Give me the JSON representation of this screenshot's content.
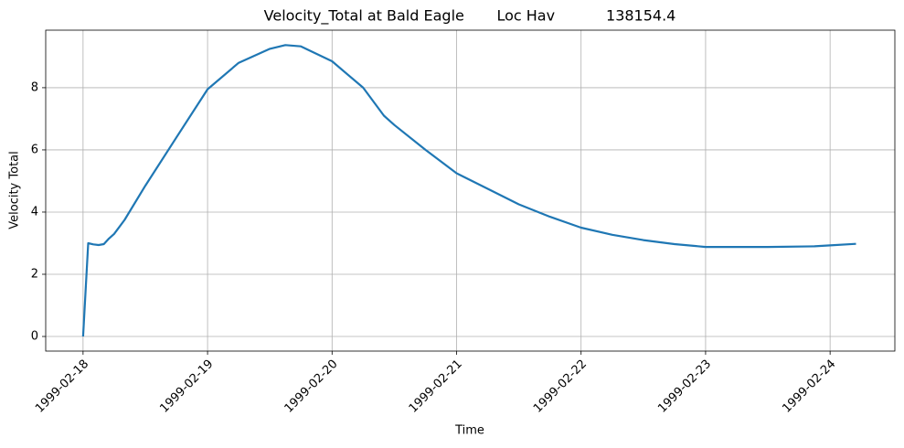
{
  "chart_data": {
    "type": "line",
    "title": "Velocity_Total at Bald Eagle       Loc Hav           138154.4",
    "x_label": "Time",
    "y_label": "Velocity Total",
    "x": [
      "1999-02-18T00:00",
      "1999-02-18T01:00",
      "1999-02-18T02:00",
      "1999-02-18T03:00",
      "1999-02-18T04:00",
      "1999-02-18T05:00",
      "1999-02-18T06:00",
      "1999-02-18T08:00",
      "1999-02-18T12:00",
      "1999-02-18T18:00",
      "1999-02-19T00:00",
      "1999-02-19T06:00",
      "1999-02-19T12:00",
      "1999-02-19T15:00",
      "1999-02-19T18:00",
      "1999-02-20T00:00",
      "1999-02-20T06:00",
      "1999-02-20T10:00",
      "1999-02-20T12:00",
      "1999-02-20T18:00",
      "1999-02-21T00:00",
      "1999-02-21T06:00",
      "1999-02-21T12:00",
      "1999-02-21T18:00",
      "1999-02-22T00:00",
      "1999-02-22T06:00",
      "1999-02-22T12:00",
      "1999-02-22T18:00",
      "1999-02-23T00:00",
      "1999-02-23T12:00",
      "1999-02-23T21:00",
      "1999-02-24T00:00",
      "1999-02-24T05:00"
    ],
    "series": [
      {
        "name": "Velocity Total",
        "color": "#1f77b4",
        "values": [
          0,
          3.0,
          2.96,
          2.94,
          2.97,
          3.15,
          3.3,
          3.75,
          4.85,
          6.4,
          7.95,
          8.8,
          9.25,
          9.37,
          9.33,
          8.85,
          8.0,
          7.1,
          6.8,
          6.0,
          5.25,
          4.75,
          4.25,
          3.85,
          3.5,
          3.27,
          3.1,
          2.97,
          2.88,
          2.88,
          2.9,
          2.93,
          2.98
        ]
      }
    ],
    "xlim": [
      "1999-02-17T16:48",
      "1999-02-24T12:29"
    ],
    "xticks": [
      "1999-02-18",
      "1999-02-19",
      "1999-02-20",
      "1999-02-21",
      "1999-02-22",
      "1999-02-23",
      "1999-02-24"
    ],
    "ylim": [
      -0.47,
      9.85
    ],
    "yticks": [
      0,
      2,
      4,
      6,
      8
    ],
    "grid": true
  }
}
